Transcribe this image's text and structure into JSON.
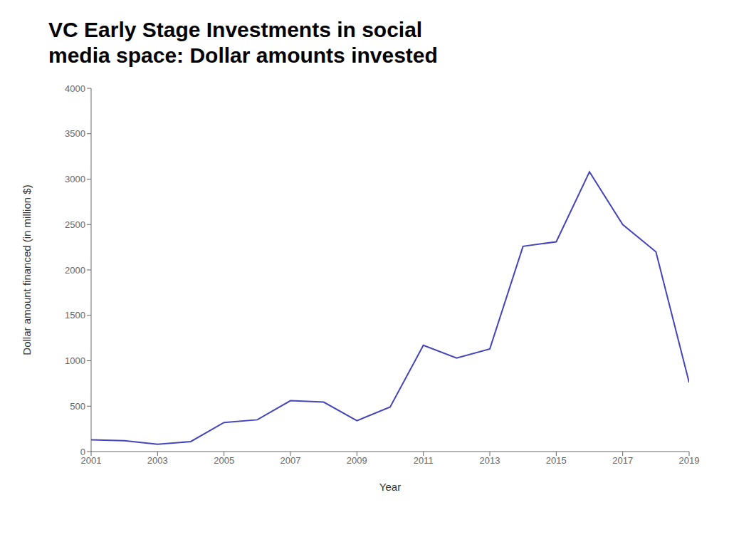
{
  "chart_data": {
    "type": "line",
    "title": "VC Early Stage Investments in social\nmedia space: Dollar amounts invested",
    "xlabel": "Year",
    "ylabel": "Dollar amount financed (in million $)",
    "x": [
      2001,
      2002,
      2003,
      2004,
      2005,
      2006,
      2007,
      2008,
      2009,
      2010,
      2011,
      2012,
      2013,
      2014,
      2015,
      2016,
      2017,
      2018,
      2019
    ],
    "values": [
      130,
      120,
      80,
      110,
      320,
      350,
      560,
      545,
      340,
      490,
      1170,
      1030,
      1130,
      2260,
      2310,
      3080,
      2500,
      2200,
      760
    ],
    "color": "#4444bb",
    "xlim": [
      2001,
      2019
    ],
    "ylim": [
      0,
      4000
    ],
    "xticks": [
      2001,
      2003,
      2005,
      2007,
      2009,
      2011,
      2013,
      2015,
      2017,
      2019
    ],
    "yticks": [
      0,
      500,
      1000,
      1500,
      2000,
      2500,
      3000,
      3500,
      4000
    ],
    "grid": false
  }
}
